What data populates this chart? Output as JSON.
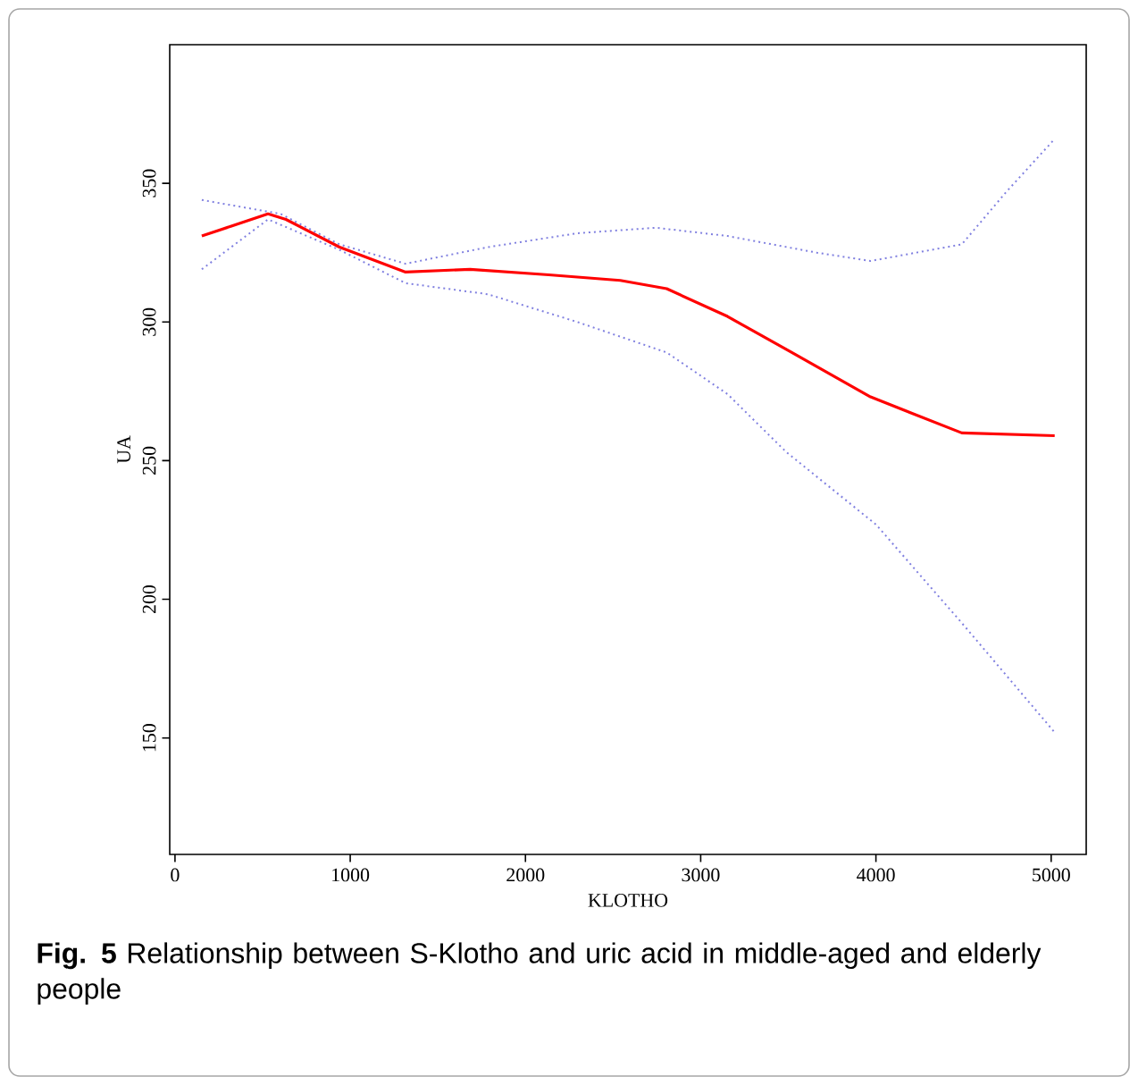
{
  "chart_data": {
    "type": "line",
    "xlabel": "KLOTHO",
    "ylabel": "UA",
    "xlim": [
      -30,
      5200
    ],
    "ylim": [
      108,
      400
    ],
    "xticks": [
      0,
      1000,
      2000,
      3000,
      4000,
      5000
    ],
    "yticks": [
      150,
      200,
      250,
      300,
      350
    ],
    "grid": false,
    "series": [
      {
        "color": "#ff0000",
        "line_style": "solid",
        "x": [
          153,
          531,
          633,
          939,
          1316,
          1684,
          2133,
          2541,
          2806,
          3153,
          3520,
          3969,
          4490,
          5020
        ],
        "values": [
          331,
          339,
          337,
          327,
          318,
          319,
          317,
          315,
          312,
          302,
          289,
          273,
          260,
          259
        ]
      },
      {
        "color": "#8080e0",
        "line_style": "dotted",
        "x": [
          153,
          602,
          939,
          1316,
          1786,
          2296,
          2745,
          3153,
          3663,
          3969,
          4490,
          4745,
          5020
        ],
        "values": [
          344,
          339,
          328,
          321,
          327,
          332,
          334,
          331,
          325,
          322,
          328,
          347,
          366
        ]
      },
      {
        "color": "#8080e0",
        "line_style": "dotted",
        "x": [
          153,
          531,
          939,
          1316,
          1786,
          2296,
          2806,
          3153,
          3490,
          4000,
          4510,
          5020
        ],
        "values": [
          319,
          337,
          326,
          314,
          310,
          300,
          289,
          274,
          253,
          227,
          190,
          152
        ]
      }
    ],
    "annotations": [
      "**Fig. 5** Relationship between S-Klotho and uric acid in middle-aged and elderly people"
    ]
  }
}
